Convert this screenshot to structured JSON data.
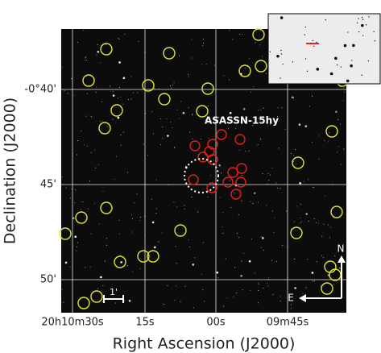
{
  "figure": {
    "x_label": "Right Ascension (J2000)",
    "y_label": "Declination (J2000)",
    "x_ticks": [
      "20h10m30s",
      "15s",
      "00s",
      "09m45s"
    ],
    "y_ticks": [
      "-0°40'",
      "45'",
      "50'"
    ],
    "annotations": {
      "target": "ASASSN-15hy",
      "scale": "1'",
      "north": "N",
      "east": "E"
    }
  }
}
